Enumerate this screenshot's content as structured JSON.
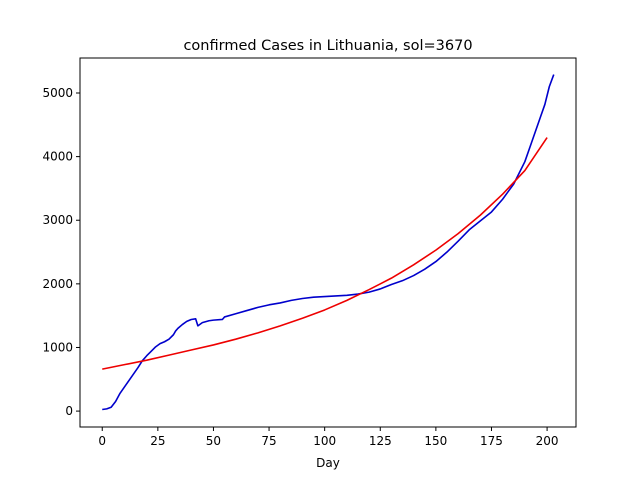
{
  "chart_data": {
    "type": "line",
    "title": "confirmed Cases in Lithuania, sol=3670",
    "xlabel": "Day",
    "ylabel": "",
    "xlim": [
      -10,
      213
    ],
    "ylim": [
      -250,
      5550
    ],
    "xticks": [
      0,
      25,
      50,
      75,
      100,
      125,
      150,
      175,
      200
    ],
    "yticks": [
      0,
      1000,
      2000,
      3000,
      4000,
      5000
    ],
    "grid": false,
    "legend": "none",
    "series": [
      {
        "color": "#0000cc",
        "x": [
          0,
          2,
          4,
          6,
          8,
          10,
          12,
          14,
          16,
          18,
          20,
          22,
          24,
          26,
          28,
          30,
          32,
          33,
          34,
          36,
          38,
          40,
          42,
          43,
          45,
          48,
          50,
          54,
          55,
          60,
          65,
          70,
          75,
          80,
          85,
          90,
          95,
          100,
          105,
          110,
          115,
          120,
          125,
          130,
          135,
          140,
          145,
          150,
          155,
          160,
          165,
          170,
          175,
          180,
          185,
          190,
          193,
          195,
          197,
          199,
          201,
          203
        ],
        "y": [
          25,
          35,
          60,
          150,
          280,
          380,
          480,
          580,
          680,
          790,
          870,
          940,
          1010,
          1060,
          1090,
          1130,
          1200,
          1260,
          1300,
          1360,
          1410,
          1440,
          1450,
          1340,
          1390,
          1420,
          1430,
          1440,
          1480,
          1530,
          1580,
          1630,
          1670,
          1700,
          1740,
          1770,
          1790,
          1800,
          1810,
          1820,
          1840,
          1870,
          1920,
          1990,
          2050,
          2130,
          2230,
          2350,
          2500,
          2670,
          2850,
          2990,
          3130,
          3330,
          3570,
          3920,
          4220,
          4420,
          4620,
          4820,
          5100,
          5290
        ]
      },
      {
        "color": "#ee0000",
        "x": [
          0,
          10,
          20,
          30,
          40,
          50,
          60,
          70,
          80,
          90,
          100,
          110,
          120,
          130,
          140,
          150,
          160,
          170,
          180,
          190,
          200
        ],
        "y": [
          660,
          730,
          800,
          880,
          960,
          1040,
          1130,
          1230,
          1340,
          1460,
          1590,
          1740,
          1910,
          2090,
          2300,
          2530,
          2790,
          3080,
          3410,
          3780,
          4300
        ]
      }
    ]
  }
}
